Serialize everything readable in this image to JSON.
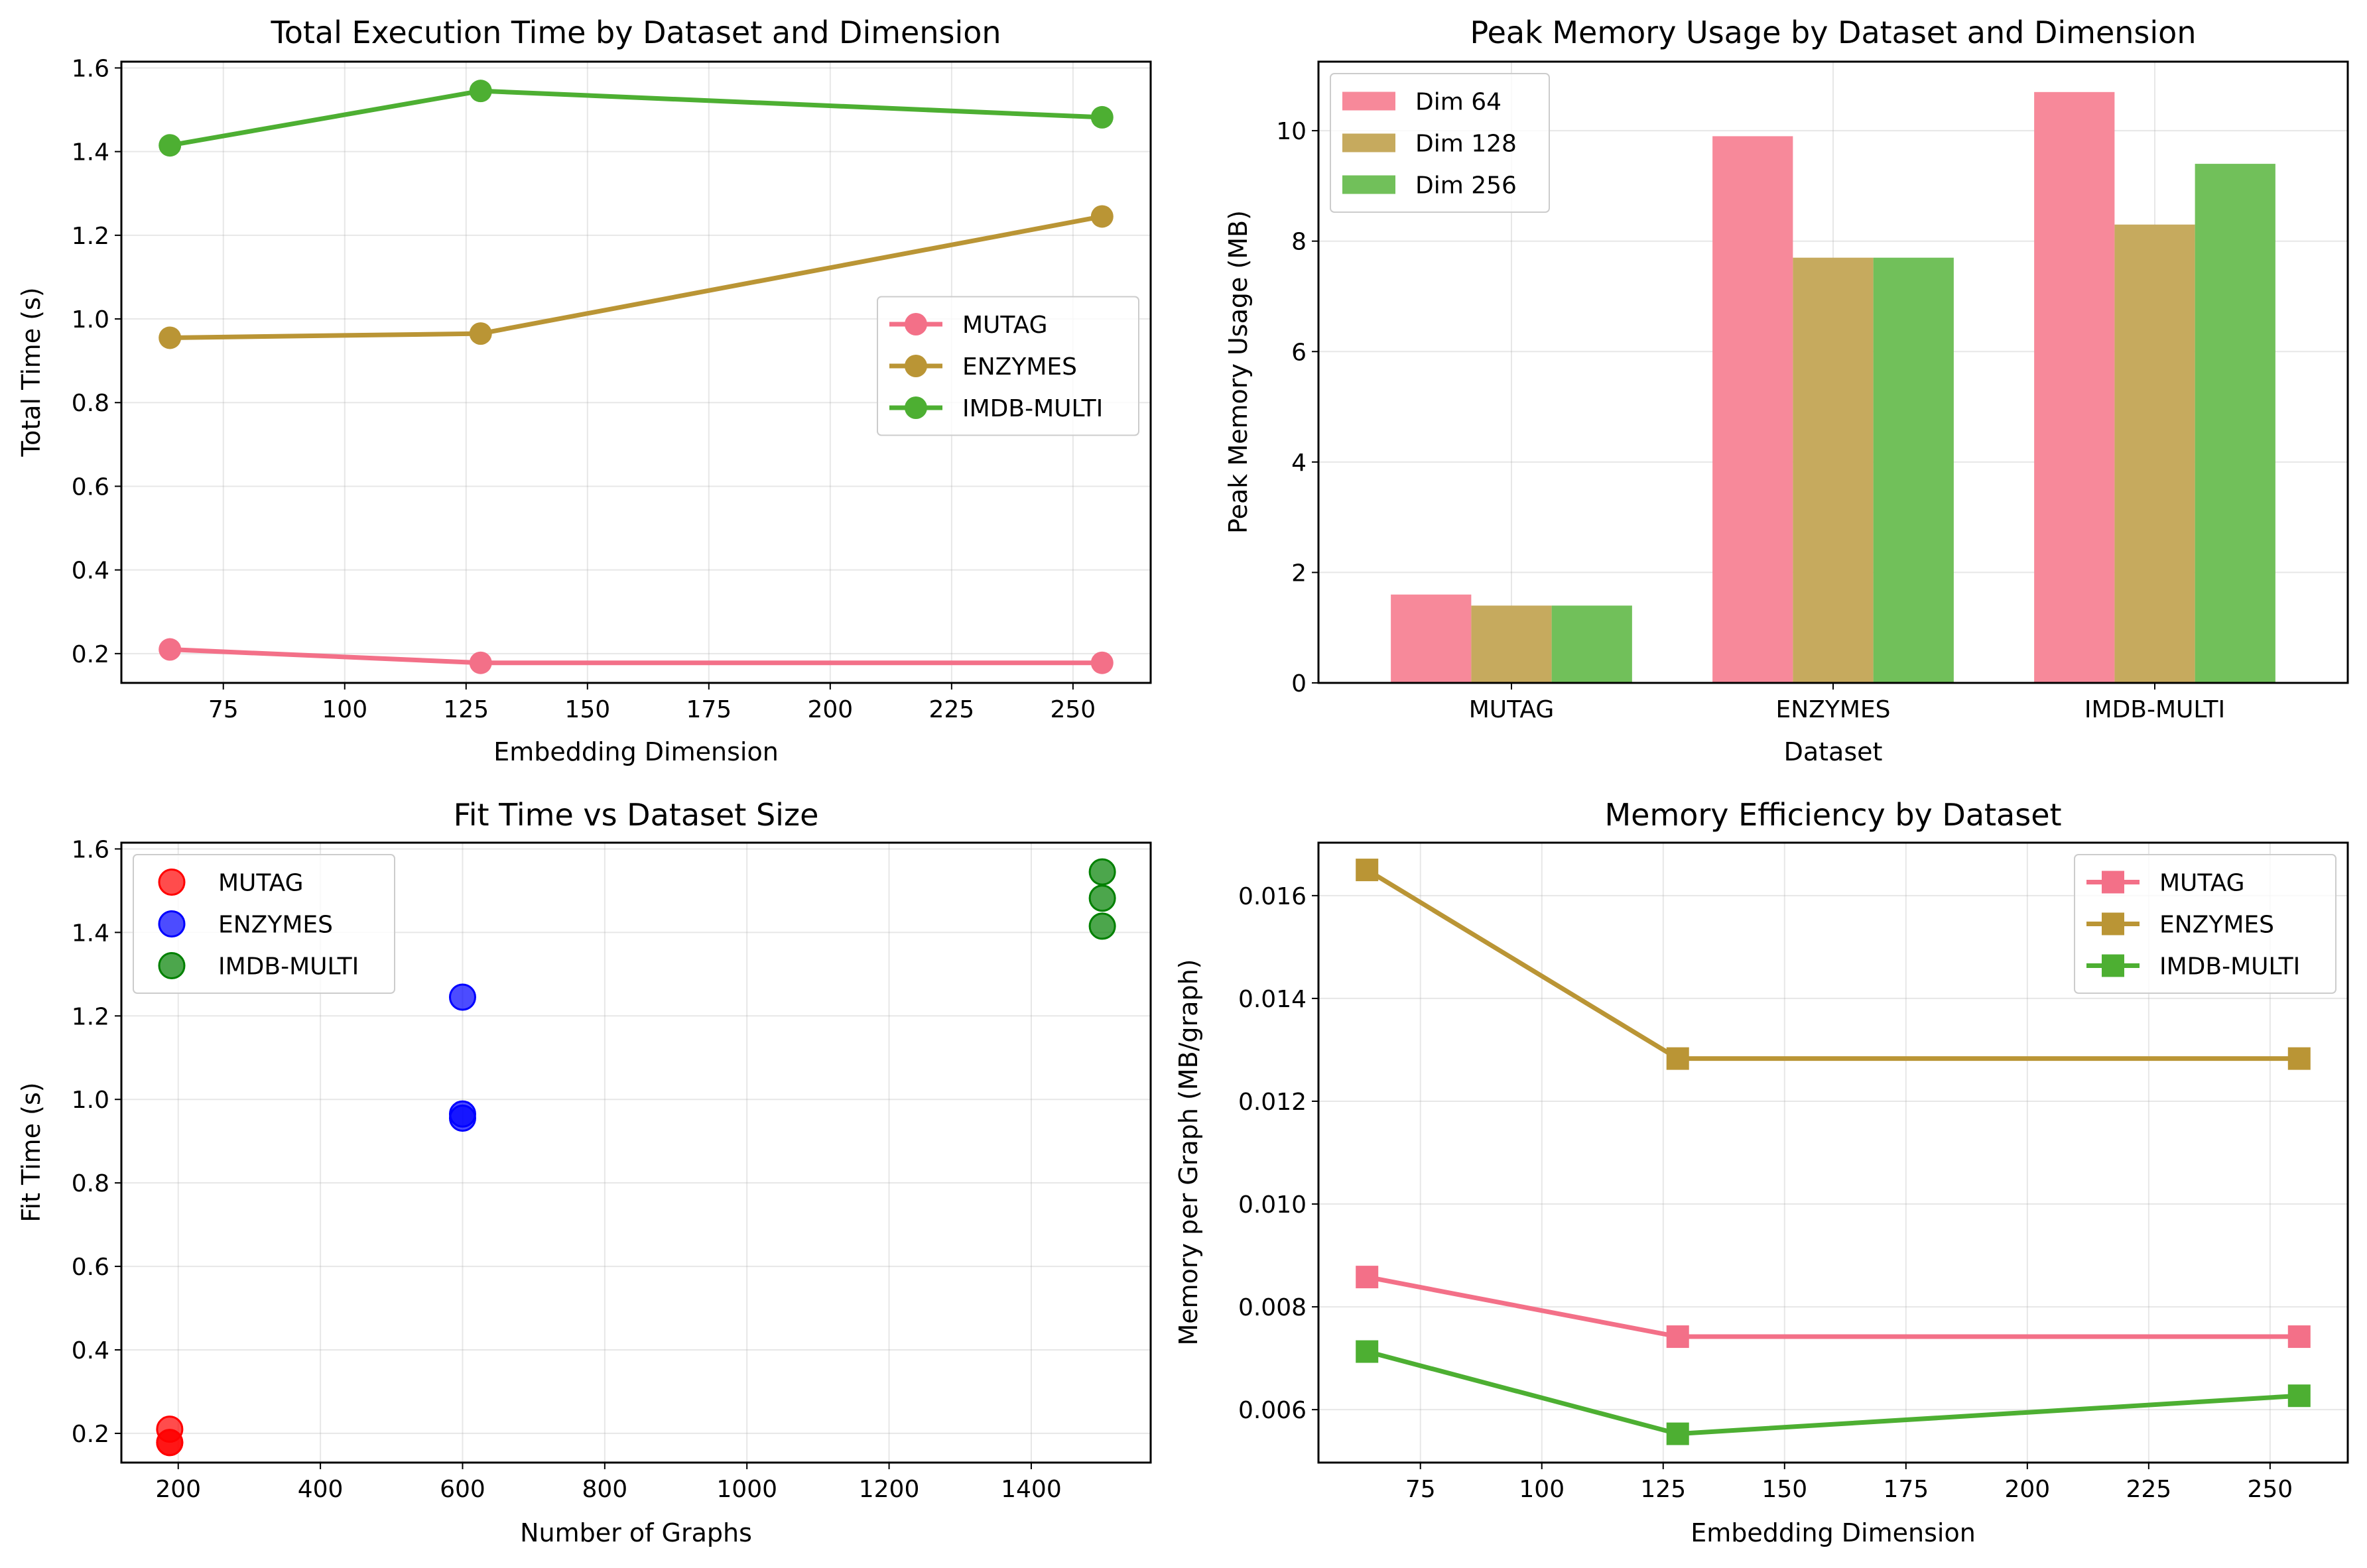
{
  "chart_data": [
    {
      "type": "line",
      "title": "Total Execution Time by Dataset and Dimension",
      "xlabel": "Embedding Dimension",
      "ylabel": "Total Time (s)",
      "x": [
        64,
        128,
        256
      ],
      "xlim": [
        54,
        266
      ],
      "ylim": [
        0.13,
        1.615
      ],
      "xticks": [
        75,
        100,
        125,
        150,
        175,
        200,
        225,
        250
      ],
      "yticks": [
        0.2,
        0.4,
        0.6,
        0.8,
        1.0,
        1.2,
        1.4,
        1.6
      ],
      "ytick_decimals": 1,
      "marker": "circle",
      "grid": true,
      "legend_position": "center-right",
      "series": [
        {
          "name": "MUTAG",
          "color": "#f37088",
          "values": [
            0.21,
            0.178,
            0.178
          ]
        },
        {
          "name": "ENZYMES",
          "color": "#ba9535",
          "values": [
            0.955,
            0.965,
            1.245
          ]
        },
        {
          "name": "IMDB-MULTI",
          "color": "#4daf32",
          "values": [
            1.415,
            1.545,
            1.482
          ]
        }
      ]
    },
    {
      "type": "bar",
      "title": "Peak Memory Usage by Dataset and Dimension",
      "xlabel": "Dataset",
      "ylabel": "Peak Memory Usage (MB)",
      "categories": [
        "MUTAG",
        "ENZYMES",
        "IMDB-MULTI"
      ],
      "ylim": [
        0,
        11.25
      ],
      "yticks": [
        0,
        2,
        4,
        6,
        8,
        10
      ],
      "ytick_decimals": 0,
      "grid": true,
      "legend_position": "top-left",
      "series": [
        {
          "name": "Dim 64",
          "color": "#f7899a",
          "values": [
            1.6,
            9.9,
            10.7
          ]
        },
        {
          "name": "Dim 128",
          "color": "#c6aa5e",
          "values": [
            1.4,
            7.7,
            8.3
          ]
        },
        {
          "name": "Dim 256",
          "color": "#71c05a",
          "values": [
            1.4,
            7.7,
            9.4
          ]
        }
      ]
    },
    {
      "type": "scatter",
      "title": "Fit Time vs Dataset Size",
      "xlabel": "Number of Graphs",
      "ylabel": "Fit Time (s)",
      "xlim": [
        120,
        1568
      ],
      "ylim": [
        0.13,
        1.615
      ],
      "xticks": [
        200,
        400,
        600,
        800,
        1000,
        1200,
        1400
      ],
      "yticks": [
        0.2,
        0.4,
        0.6,
        0.8,
        1.0,
        1.2,
        1.4,
        1.6
      ],
      "ytick_decimals": 1,
      "grid": true,
      "legend_position": "top-left",
      "series": [
        {
          "name": "MUTAG",
          "color": "#ff0000",
          "points": [
            [
              188,
              0.21
            ],
            [
              188,
              0.178
            ],
            [
              188,
              0.178
            ]
          ]
        },
        {
          "name": "ENZYMES",
          "color": "#0000ff",
          "points": [
            [
              600,
              0.955
            ],
            [
              600,
              0.965
            ],
            [
              600,
              1.245
            ]
          ]
        },
        {
          "name": "IMDB-MULTI",
          "color": "#008000",
          "points": [
            [
              1500,
              1.415
            ],
            [
              1500,
              1.545
            ],
            [
              1500,
              1.482
            ]
          ]
        }
      ]
    },
    {
      "type": "line",
      "title": "Memory Efficiency by Dataset",
      "xlabel": "Embedding Dimension",
      "ylabel": "Memory per Graph (MB/graph)",
      "x": [
        64,
        128,
        256
      ],
      "xlim": [
        54,
        266
      ],
      "ylim": [
        0.00497,
        0.01703
      ],
      "xticks": [
        75,
        100,
        125,
        150,
        175,
        200,
        225,
        250
      ],
      "yticks": [
        0.006,
        0.008,
        0.01,
        0.012,
        0.014,
        0.016
      ],
      "ytick_decimals": 3,
      "marker": "square",
      "grid": true,
      "legend_position": "top-right",
      "series": [
        {
          "name": "MUTAG",
          "color": "#f37088",
          "values": [
            0.00858,
            0.00742,
            0.00742
          ]
        },
        {
          "name": "ENZYMES",
          "color": "#ba9535",
          "values": [
            0.0165,
            0.01283,
            0.01283
          ]
        },
        {
          "name": "IMDB-MULTI",
          "color": "#4daf32",
          "values": [
            0.00713,
            0.00553,
            0.00627
          ]
        }
      ]
    }
  ]
}
